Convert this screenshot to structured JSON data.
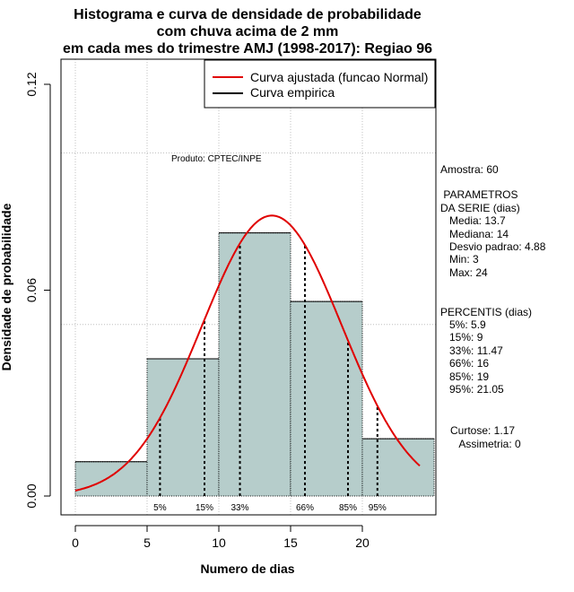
{
  "chart_data": {
    "type": "histogram",
    "title_lines": [
      "Histograma e curva de densidade de probabilidade",
      "com chuva acima de 2 mm",
      "em cada mes do trimestre AMJ (1998-2017): Regiao 96"
    ],
    "xlabel": "Numero de dias",
    "ylabel": "Densidade de probabilidade",
    "xlim": [
      -1,
      25
    ],
    "ylim": [
      -0.003,
      0.12
    ],
    "x_ticks": [
      0,
      5,
      10,
      15,
      20
    ],
    "x_tick_labels": [
      "0",
      "5",
      "10",
      "15",
      "20"
    ],
    "y_ticks": [
      0.0,
      0.06,
      0.12
    ],
    "y_tick_labels": [
      "0.00",
      "0.06",
      "0.12"
    ],
    "grid_y": [
      0.1,
      0.05
    ],
    "bins": [
      {
        "start": 0,
        "end": 5,
        "density": 0.01
      },
      {
        "start": 5,
        "end": 10,
        "density": 0.04
      },
      {
        "start": 10,
        "end": 15,
        "density": 0.0767
      },
      {
        "start": 15,
        "end": 20,
        "density": 0.0567
      },
      {
        "start": 20,
        "end": 25,
        "density": 0.0167
      }
    ],
    "normal_fit": {
      "mean": 13.7,
      "sd": 4.88,
      "x_from": 0,
      "x_to": 24
    },
    "percentiles": [
      {
        "label": "5%",
        "value": 5.9
      },
      {
        "label": "15%",
        "value": 9
      },
      {
        "label": "33%",
        "value": 11.47
      },
      {
        "label": "66%",
        "value": 16
      },
      {
        "label": "85%",
        "value": 19
      },
      {
        "label": "95%",
        "value": 21.05
      }
    ],
    "legend": {
      "position": "top-right",
      "entries": [
        {
          "label": "Curva ajustada (funcao Normal)",
          "color": "#e00000"
        },
        {
          "label": "Curva empirica",
          "color": "#000000"
        }
      ]
    },
    "credit": "Produto: CPTEC/INPE",
    "colors": {
      "bar_fill": "#b6cdcb",
      "curve": "#e00000",
      "grid": "#c0c0c0",
      "axis": "#000000"
    }
  },
  "stats_panel": [
    "Amostra: 60",
    " PARAMETROS",
    "DA SERIE (dias)",
    "   Media: 13.7",
    "   Mediana: 14",
    "   Desvio padrao: 4.88",
    "   Min: 3",
    "   Max: 24",
    "PERCENTIS (dias)",
    "   5%: 5.9",
    "   15%: 9",
    "   33%: 11.47",
    "   66%: 16",
    "   85%: 19",
    "   95%: 21.05",
    "Curtose: 1.17",
    "   Assimetria: 0"
  ]
}
